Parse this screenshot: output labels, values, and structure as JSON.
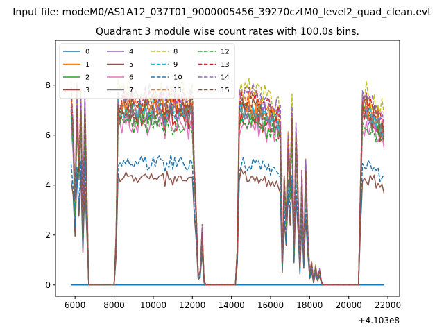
{
  "figure": {
    "suptitle": "Input file: modeM0/AS1A12_037T01_9000005456_39270cztM0_level2_quad_clean.evt",
    "title": "Quadrant 3 module wise count rates with 100.0s bins.",
    "offset_label": "+4.103e8"
  },
  "chart_data": {
    "type": "line",
    "title": "Quadrant 3 module wise count rates with 100.0s bins.",
    "xlabel": "",
    "ylabel": "",
    "x_offset": 410300000,
    "xlim": [
      5000,
      22600
    ],
    "ylim": [
      -0.45,
      9.8
    ],
    "xticks": [
      6000,
      8000,
      10000,
      12000,
      14000,
      16000,
      18000,
      20000,
      22000
    ],
    "xtick_labels": [
      "6000",
      "8000",
      "10000",
      "12000",
      "14000",
      "16000",
      "18000",
      "20000",
      "22000"
    ],
    "yticks": [
      0,
      2,
      4,
      6,
      8
    ],
    "ytick_labels": [
      "0",
      "2",
      "4",
      "6",
      "8"
    ],
    "grid": false,
    "legend_position": "top-left",
    "legend_columns": 4,
    "envelope_x": [
      5800,
      5900,
      6000,
      6100,
      6200,
      6300,
      6400,
      6500,
      6600,
      6700,
      8000,
      8100,
      8200,
      8300,
      8400,
      8500,
      8600,
      8700,
      8800,
      8900,
      9000,
      9100,
      9200,
      9300,
      9400,
      9500,
      9600,
      9700,
      9800,
      9900,
      10000,
      10100,
      10200,
      10300,
      10400,
      10500,
      10600,
      10700,
      10800,
      10900,
      11000,
      11100,
      11200,
      11300,
      11400,
      11500,
      11600,
      11700,
      11800,
      11900,
      12000,
      12100,
      12200,
      12300,
      12400,
      12500,
      12600,
      12700,
      14200,
      14300,
      14400,
      14500,
      14600,
      14700,
      14800,
      14900,
      15000,
      15100,
      15200,
      15300,
      15400,
      15500,
      15600,
      15700,
      15800,
      15900,
      16000,
      16100,
      16200,
      16300,
      16400,
      16500,
      16600,
      16700,
      16800,
      16900,
      17000,
      17100,
      17200,
      17300,
      17400,
      17500,
      17600,
      17700,
      17800,
      17900,
      18000,
      18100,
      18200,
      18300,
      18400,
      18500,
      18600,
      18700,
      18800,
      20500,
      20600,
      20700,
      20800,
      20900,
      21000,
      21100,
      21200,
      21300,
      21400,
      21500,
      21600,
      21700,
      21800
    ],
    "envelope": [
      1,
      0.82,
      0.45,
      1,
      0.62,
      0.96,
      0.3,
      0.96,
      0.5,
      0,
      0,
      0.26,
      1,
      0.96,
      0.98,
      1,
      0.97,
      0.99,
      0.96,
      1,
      0.97,
      0.99,
      0.96,
      1,
      0.98,
      0.97,
      1,
      0.96,
      0.99,
      0.97,
      1,
      0.98,
      0.96,
      0.99,
      1,
      0.97,
      0.95,
      0.99,
      0.97,
      1,
      0.96,
      0.98,
      0.95,
      1,
      0.97,
      0.99,
      0.96,
      0.98,
      0.95,
      0.99,
      0.97,
      0.62,
      0.38,
      0.05,
      0.07,
      0.3,
      0.02,
      0,
      0,
      0.2,
      0.95,
      1,
      0.98,
      0.99,
      0.97,
      1,
      0.96,
      0.98,
      0.95,
      0.99,
      0.96,
      0.98,
      0.94,
      0.97,
      0.93,
      0.96,
      0.92,
      0.95,
      0.9,
      0.93,
      0.9,
      0.88,
      0.12,
      0.58,
      0.35,
      0.8,
      0.55,
      0.92,
      0.2,
      0.85,
      0.5,
      0.1,
      0.58,
      0.15,
      0.62,
      0.3,
      0.06,
      0.12,
      0.02,
      0.1,
      0.04,
      0.08,
      0.02,
      0,
      0,
      0,
      0.5,
      1,
      0.97,
      0.99,
      0.94,
      0.97,
      0.92,
      0.95,
      0.9,
      0.93,
      0.88,
      0.9,
      0.86
    ],
    "series": [
      {
        "name": "0",
        "color": "#1f77b4",
        "dash": "solid",
        "level": 0.0
      },
      {
        "name": "1",
        "color": "#ff7f0e",
        "dash": "solid",
        "level": 7.3
      },
      {
        "name": "2",
        "color": "#2ca02c",
        "dash": "solid",
        "level": 7.0
      },
      {
        "name": "3",
        "color": "#d62728",
        "dash": "solid",
        "level": 6.9
      },
      {
        "name": "4",
        "color": "#9467bd",
        "dash": "solid",
        "level": 7.2
      },
      {
        "name": "5",
        "color": "#8c564b",
        "dash": "solid",
        "level": 4.4
      },
      {
        "name": "6",
        "color": "#e377c2",
        "dash": "solid",
        "level": 6.5
      },
      {
        "name": "7",
        "color": "#7f7f7f",
        "dash": "solid",
        "level": 7.0
      },
      {
        "name": "8",
        "color": "#bcbd22",
        "dash": "dashed",
        "level": 7.9
      },
      {
        "name": "9",
        "color": "#17becf",
        "dash": "dashed",
        "level": 7.1
      },
      {
        "name": "10",
        "color": "#1f77b4",
        "dash": "dashed",
        "level": 5.0
      },
      {
        "name": "11",
        "color": "#ff7f0e",
        "dash": "dashed",
        "level": 7.4
      },
      {
        "name": "12",
        "color": "#2ca02c",
        "dash": "dashed",
        "level": 6.6
      },
      {
        "name": "13",
        "color": "#d62728",
        "dash": "dashed",
        "level": 7.5
      },
      {
        "name": "14",
        "color": "#9467bd",
        "dash": "dashed",
        "level": 7.8
      },
      {
        "name": "15",
        "color": "#8c564b",
        "dash": "dashed",
        "level": 7.2
      }
    ]
  }
}
